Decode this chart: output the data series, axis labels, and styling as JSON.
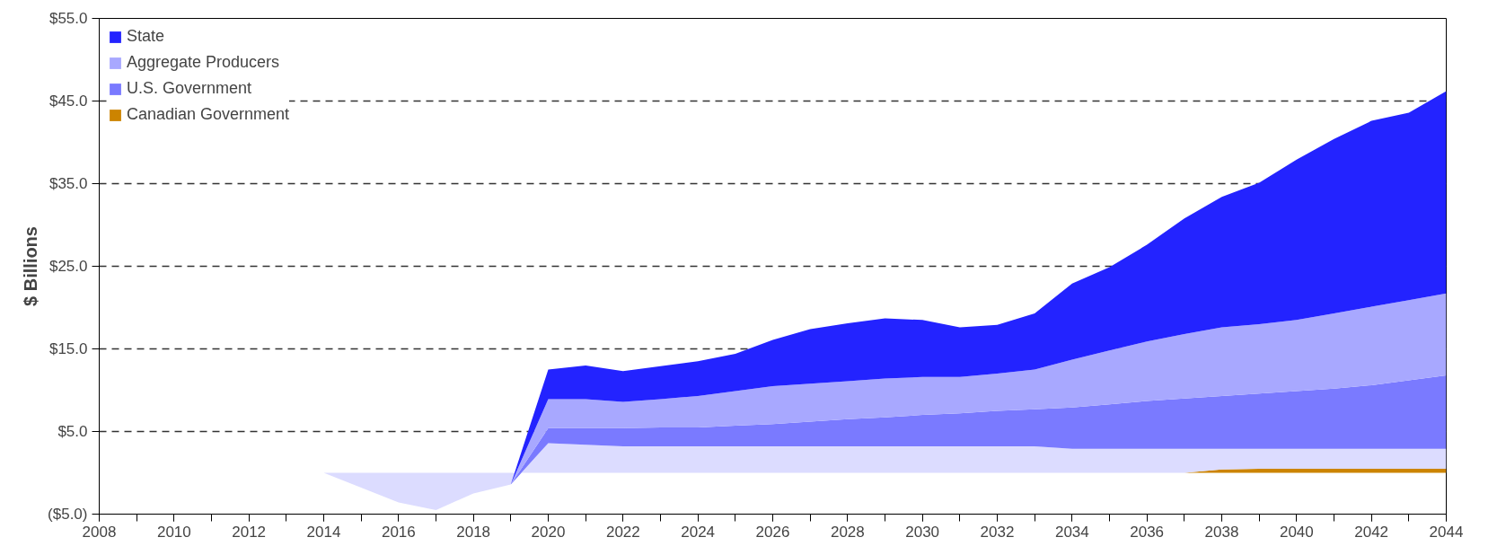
{
  "chart_data": {
    "type": "area",
    "stacked": true,
    "ylabel": "$ Billions",
    "x": [
      2008,
      2009,
      2010,
      2011,
      2012,
      2013,
      2014,
      2015,
      2016,
      2017,
      2018,
      2019,
      2020,
      2021,
      2022,
      2023,
      2024,
      2025,
      2026,
      2027,
      2028,
      2029,
      2030,
      2031,
      2032,
      2033,
      2034,
      2035,
      2036,
      2037,
      2038,
      2039,
      2040,
      2041,
      2042,
      2043,
      2044
    ],
    "series": [
      {
        "name": "Canadian Government",
        "color": "#cc8400",
        "values": [
          0,
          0,
          0,
          0,
          0,
          0,
          0,
          0,
          0,
          0,
          0,
          0,
          0,
          0,
          0,
          0,
          0,
          0,
          0,
          0,
          0,
          0,
          0,
          0,
          0,
          0,
          0,
          0,
          0,
          0,
          0.4,
          0.5,
          0.5,
          0.5,
          0.5,
          0.5,
          0.5
        ]
      },
      {
        "color": "#dcdcff",
        "values": [
          0,
          0,
          0,
          0,
          0,
          0,
          0,
          -1.8,
          -3.6,
          -4.5,
          -2.5,
          -1.4,
          3.6,
          3.4,
          3.2,
          3.2,
          3.2,
          3.2,
          3.2,
          3.2,
          3.2,
          3.2,
          3.2,
          3.2,
          3.2,
          3.2,
          2.9,
          2.9,
          2.9,
          2.9,
          2.5,
          2.4,
          2.4,
          2.4,
          2.4,
          2.4,
          2.4
        ]
      },
      {
        "name": "U.S. Government",
        "color": "#7a7aff",
        "values": [
          0,
          0,
          0,
          0,
          0,
          0,
          0,
          0,
          0,
          0,
          0,
          0,
          1.8,
          2.0,
          2.2,
          2.3,
          2.3,
          2.5,
          2.7,
          3.0,
          3.3,
          3.5,
          3.8,
          4.0,
          4.3,
          4.5,
          5.0,
          5.4,
          5.8,
          6.1,
          6.4,
          6.7,
          7.0,
          7.3,
          7.7,
          8.3,
          8.9
        ]
      },
      {
        "name": "Aggregate Producers",
        "color": "#a8a8ff",
        "values": [
          0,
          0,
          0,
          0,
          0,
          0,
          0,
          0,
          0,
          0,
          0,
          0,
          3.5,
          3.5,
          3.2,
          3.4,
          3.8,
          4.2,
          4.6,
          4.6,
          4.6,
          4.7,
          4.6,
          4.4,
          4.5,
          4.8,
          5.8,
          6.5,
          7.2,
          7.8,
          8.3,
          8.4,
          8.6,
          9.1,
          9.5,
          9.7,
          9.9
        ]
      },
      {
        "name": "State",
        "color": "#2323ff",
        "values": [
          0,
          0,
          0,
          0,
          0,
          0,
          0,
          0,
          0,
          0,
          0,
          0,
          3.6,
          4.1,
          3.7,
          4.0,
          4.2,
          4.5,
          5.6,
          6.6,
          7.0,
          7.3,
          6.9,
          6.0,
          5.9,
          6.8,
          9.2,
          10.1,
          11.7,
          14.0,
          15.8,
          17.1,
          19.4,
          21.1,
          22.5,
          22.7,
          24.5
        ]
      }
    ],
    "xlim": [
      2008,
      2044
    ],
    "xticks": [
      2008,
      2010,
      2012,
      2014,
      2016,
      2018,
      2020,
      2022,
      2024,
      2026,
      2028,
      2030,
      2032,
      2034,
      2036,
      2038,
      2040,
      2042,
      2044
    ],
    "ylim": [
      -5,
      55
    ],
    "yticks": [
      {
        "value": -5,
        "label": "($5.0)"
      },
      {
        "value": 5,
        "label": "$5.0"
      },
      {
        "value": 15,
        "label": "$15.0"
      },
      {
        "value": 25,
        "label": "$25.0"
      },
      {
        "value": 35,
        "label": "$35.0"
      },
      {
        "value": 45,
        "label": "$45.0"
      },
      {
        "value": 55,
        "label": "$55.0"
      }
    ],
    "grid": "y",
    "legend": "top left"
  }
}
